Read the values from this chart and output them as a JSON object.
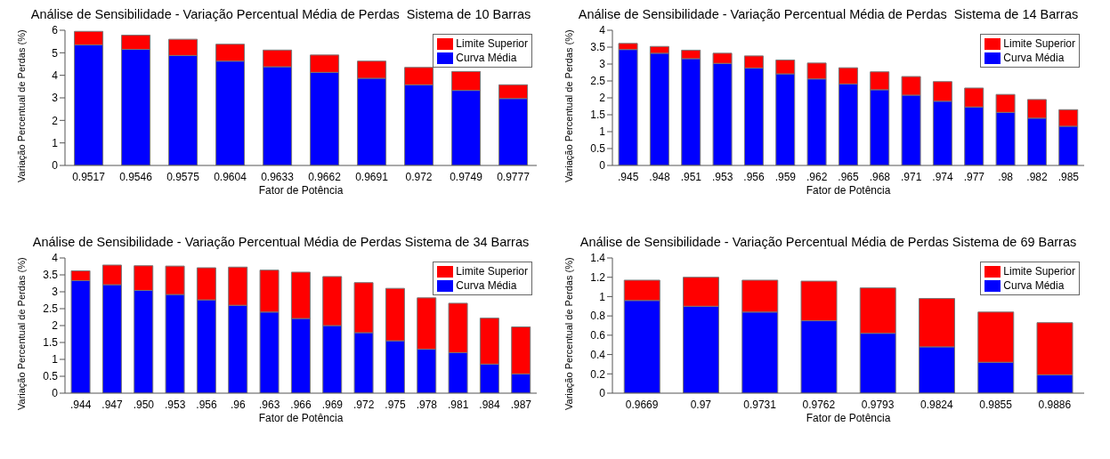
{
  "chart_data": [
    {
      "type": "bar",
      "stacked": true,
      "title": "Análise de Sensibilidade - Variação Percentual Média de Perdas  Sistema de 10 Barras",
      "xlabel": "Fator de Potência",
      "ylabel": "Variação Percentual de Perdas (%)",
      "categories": [
        "0.9517",
        "0.9546",
        "0.9575",
        "0.9604",
        "0.9633",
        "0.9662",
        "0.9691",
        "0.972",
        "0.9749",
        "0.9777"
      ],
      "ylim": [
        0,
        6
      ],
      "yticks": [
        0,
        1,
        2,
        3,
        4,
        5,
        6
      ],
      "legend": "top right",
      "series": [
        {
          "name": "Curva Média",
          "color": "#0000ff",
          "values": [
            5.35,
            5.15,
            4.88,
            4.63,
            4.38,
            4.13,
            3.87,
            3.58,
            3.33,
            2.97
          ]
        },
        {
          "name": "Limite Superior",
          "color": "#ff0000",
          "values": [
            0.6,
            0.63,
            0.72,
            0.75,
            0.74,
            0.77,
            0.76,
            0.77,
            0.84,
            0.61
          ]
        }
      ]
    },
    {
      "type": "bar",
      "stacked": true,
      "title": "Análise de Sensibilidade - Variação Percentual Média de Perdas  Sistema de 14 Barras",
      "xlabel": "Fator de Potência",
      "ylabel": "Variação Percentual de Perdas (%)",
      "categories": [
        ".945",
        ".948",
        ".951",
        ".953",
        ".956",
        ".959",
        ".962",
        ".965",
        ".968",
        ".971",
        ".974",
        ".977",
        ".98",
        ".982",
        ".985"
      ],
      "ylim": [
        0,
        4
      ],
      "yticks": [
        0,
        0.5,
        1,
        1.5,
        2,
        2.5,
        3,
        3.5,
        4
      ],
      "legend": "top right",
      "series": [
        {
          "name": "Curva Média",
          "color": "#0000ff",
          "values": [
            3.43,
            3.32,
            3.16,
            3.02,
            2.88,
            2.71,
            2.56,
            2.41,
            2.24,
            2.08,
            1.9,
            1.73,
            1.57,
            1.4,
            1.16
          ]
        },
        {
          "name": "Limite Superior",
          "color": "#ff0000",
          "values": [
            0.18,
            0.2,
            0.25,
            0.3,
            0.36,
            0.41,
            0.47,
            0.48,
            0.53,
            0.55,
            0.58,
            0.56,
            0.53,
            0.55,
            0.49
          ]
        }
      ]
    },
    {
      "type": "bar",
      "stacked": true,
      "title": "Análise de Sensibilidade - Variação Percentual Média de Perdas Sistema de 34 Barras",
      "xlabel": "Fator de Potência",
      "ylabel": "Variação Percentual de Perdas (%)",
      "categories": [
        ".944",
        ".947",
        ".950",
        ".953",
        ".956",
        ".96",
        ".963",
        ".966",
        ".969",
        ".972",
        ".975",
        ".978",
        ".981",
        ".984",
        ".987"
      ],
      "ylim": [
        0,
        4
      ],
      "yticks": [
        0,
        0.5,
        1,
        1.5,
        2,
        2.5,
        3,
        3.5,
        4
      ],
      "legend": "top right",
      "series": [
        {
          "name": "Curva Média",
          "color": "#0000ff",
          "values": [
            3.33,
            3.21,
            3.04,
            2.92,
            2.76,
            2.6,
            2.4,
            2.21,
            2.0,
            1.79,
            1.55,
            1.3,
            1.2,
            0.86,
            0.57
          ]
        },
        {
          "name": "Limite Superior",
          "color": "#ff0000",
          "values": [
            0.29,
            0.58,
            0.73,
            0.84,
            0.95,
            1.13,
            1.24,
            1.37,
            1.45,
            1.48,
            1.55,
            1.52,
            1.46,
            1.36,
            1.39
          ]
        }
      ]
    },
    {
      "type": "bar",
      "stacked": true,
      "title": "Análise de Sensibilidade - Variação Percentual Média de Perdas Sistema de 69 Barras",
      "xlabel": "Fator de Potência",
      "ylabel": "Variação Percentual de Perdas (%)",
      "categories": [
        "0.9669",
        "0.97",
        "0.9731",
        "0.9762",
        "0.9793",
        "0.9824",
        "0.9855",
        "0.9886"
      ],
      "ylim": [
        0,
        1.4
      ],
      "yticks": [
        0,
        0.2,
        0.4,
        0.6,
        0.8,
        1,
        1.2,
        1.4
      ],
      "legend": "top right",
      "series": [
        {
          "name": "Curva Média",
          "color": "#0000ff",
          "values": [
            0.96,
            0.9,
            0.84,
            0.75,
            0.62,
            0.48,
            0.32,
            0.19
          ]
        },
        {
          "name": "Limite Superior",
          "color": "#ff0000",
          "values": [
            0.21,
            0.3,
            0.33,
            0.41,
            0.47,
            0.5,
            0.52,
            0.54
          ]
        }
      ]
    }
  ]
}
